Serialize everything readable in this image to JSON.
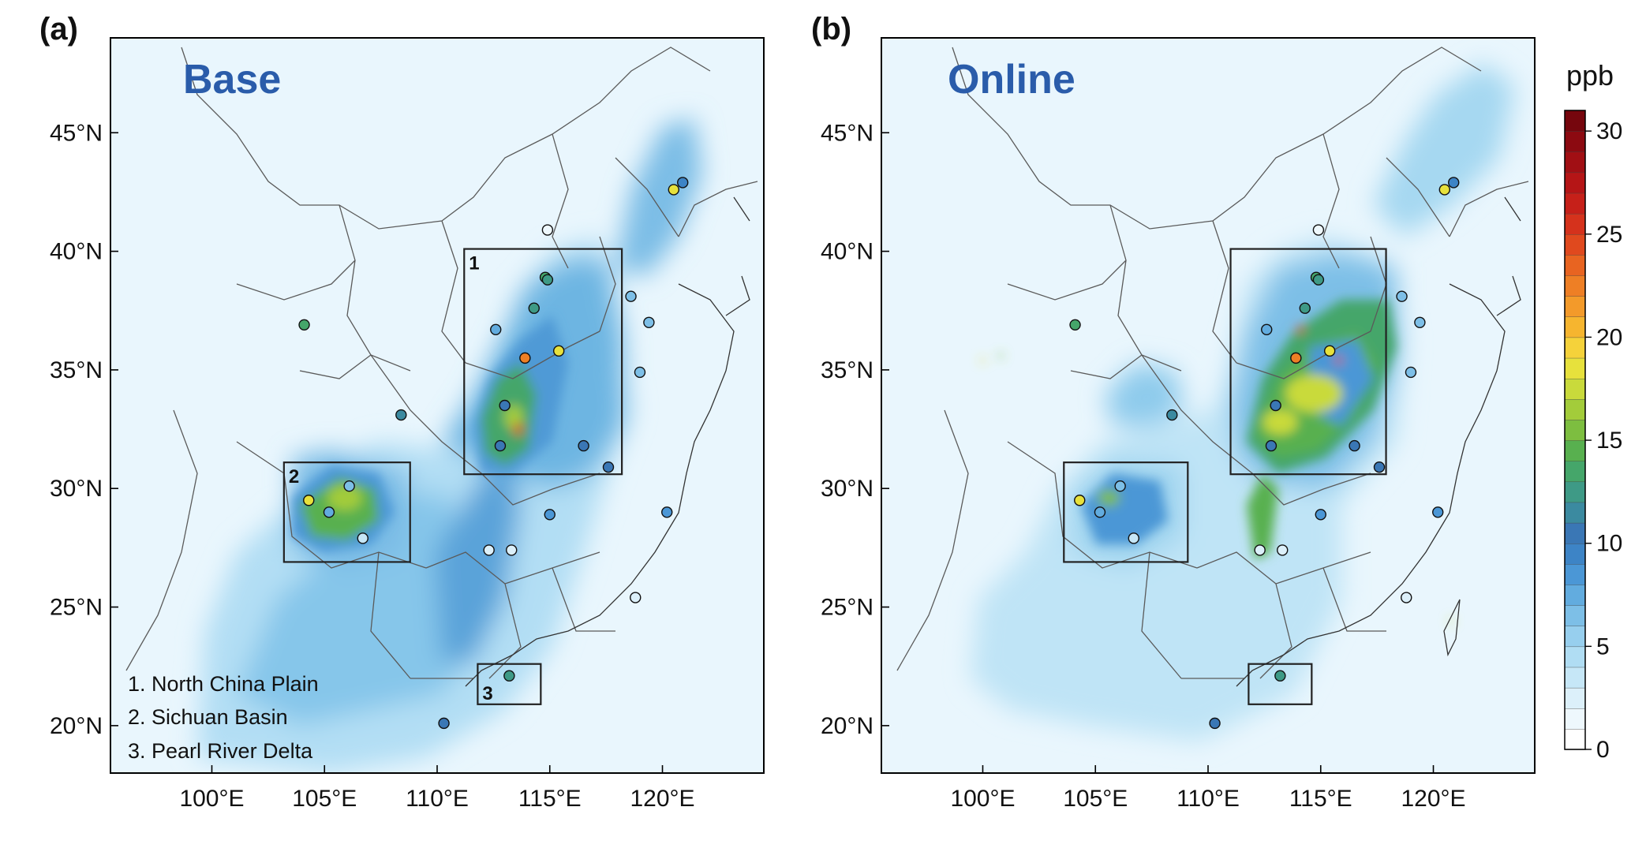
{
  "panels": [
    {
      "tag": "(a)",
      "title": "Base",
      "boxes": [
        {
          "number": "1",
          "lon": [
            111.2,
            118.2
          ],
          "lat": [
            30.6,
            40.1
          ]
        },
        {
          "number": "2",
          "lon": [
            103.2,
            108.8
          ],
          "lat": [
            26.9,
            31.1
          ]
        },
        {
          "number": "3",
          "lon": [
            111.8,
            114.6
          ],
          "lat": [
            20.9,
            22.6
          ]
        }
      ],
      "legend": [
        "1. North China Plain",
        "2. Sichuan Basin",
        "3. Pearl River Delta"
      ],
      "stations": [
        {
          "lon": 120.9,
          "lat": 42.9,
          "value": 9
        },
        {
          "lon": 120.5,
          "lat": 42.6,
          "value": 18
        },
        {
          "lon": 114.9,
          "lat": 40.9,
          "value": 1
        },
        {
          "lon": 114.8,
          "lat": 38.9,
          "value": 13
        },
        {
          "lon": 114.9,
          "lat": 38.8,
          "value": 12
        },
        {
          "lon": 114.3,
          "lat": 37.6,
          "value": 12
        },
        {
          "lon": 112.6,
          "lat": 36.7,
          "value": 7
        },
        {
          "lon": 113.9,
          "lat": 35.5,
          "value": 22
        },
        {
          "lon": 115.4,
          "lat": 35.8,
          "value": 18
        },
        {
          "lon": 113.0,
          "lat": 33.5,
          "value": 10
        },
        {
          "lon": 112.8,
          "lat": 31.8,
          "value": 10
        },
        {
          "lon": 116.5,
          "lat": 31.8,
          "value": 10
        },
        {
          "lon": 117.6,
          "lat": 30.9,
          "value": 10
        },
        {
          "lon": 118.6,
          "lat": 38.1,
          "value": 6
        },
        {
          "lon": 119.4,
          "lat": 37.0,
          "value": 6
        },
        {
          "lon": 119.0,
          "lat": 34.9,
          "value": 6
        },
        {
          "lon": 104.1,
          "lat": 36.9,
          "value": 13
        },
        {
          "lon": 108.4,
          "lat": 33.1,
          "value": 11
        },
        {
          "lon": 106.1,
          "lat": 30.1,
          "value": 6
        },
        {
          "lon": 104.3,
          "lat": 29.5,
          "value": 18
        },
        {
          "lon": 105.2,
          "lat": 29.0,
          "value": 7
        },
        {
          "lon": 106.7,
          "lat": 27.9,
          "value": 3
        },
        {
          "lon": 112.3,
          "lat": 27.4,
          "value": 2
        },
        {
          "lon": 113.3,
          "lat": 27.4,
          "value": 2
        },
        {
          "lon": 115.0,
          "lat": 28.9,
          "value": 8
        },
        {
          "lon": 120.2,
          "lat": 29.0,
          "value": 8
        },
        {
          "lon": 118.8,
          "lat": 25.4,
          "value": 2
        },
        {
          "lon": 113.2,
          "lat": 22.1,
          "value": 12
        },
        {
          "lon": 110.3,
          "lat": 20.1,
          "value": 10
        }
      ],
      "hotspots": [
        {
          "lon": 113.4,
          "lat": 33.0,
          "rx": 12,
          "ry": 16,
          "value": 16
        },
        {
          "lon": 113.6,
          "lat": 32.5,
          "rx": 6,
          "ry": 8,
          "value": 24
        },
        {
          "lon": 105.9,
          "lat": 29.6,
          "rx": 22,
          "ry": 16,
          "value": 16
        }
      ]
    },
    {
      "tag": "(b)",
      "title": "Online",
      "boxes": [
        {
          "lon": [
            111.0,
            117.9
          ],
          "lat": [
            30.6,
            40.1
          ]
        },
        {
          "lon": [
            103.6,
            109.1
          ],
          "lat": [
            26.9,
            31.1
          ]
        },
        {
          "lon": [
            111.8,
            114.6
          ],
          "lat": [
            20.9,
            22.6
          ]
        }
      ],
      "stations": [
        {
          "lon": 120.9,
          "lat": 42.9,
          "value": 9
        },
        {
          "lon": 120.5,
          "lat": 42.6,
          "value": 18
        },
        {
          "lon": 114.9,
          "lat": 40.9,
          "value": 1
        },
        {
          "lon": 114.8,
          "lat": 38.9,
          "value": 13
        },
        {
          "lon": 114.9,
          "lat": 38.8,
          "value": 12
        },
        {
          "lon": 114.3,
          "lat": 37.6,
          "value": 12
        },
        {
          "lon": 112.6,
          "lat": 36.7,
          "value": 7
        },
        {
          "lon": 113.9,
          "lat": 35.5,
          "value": 22
        },
        {
          "lon": 115.4,
          "lat": 35.8,
          "value": 18
        },
        {
          "lon": 113.0,
          "lat": 33.5,
          "value": 10
        },
        {
          "lon": 112.8,
          "lat": 31.8,
          "value": 10
        },
        {
          "lon": 116.5,
          "lat": 31.8,
          "value": 10
        },
        {
          "lon": 117.6,
          "lat": 30.9,
          "value": 10
        },
        {
          "lon": 118.6,
          "lat": 38.1,
          "value": 6
        },
        {
          "lon": 119.4,
          "lat": 37.0,
          "value": 6
        },
        {
          "lon": 119.0,
          "lat": 34.9,
          "value": 6
        },
        {
          "lon": 104.1,
          "lat": 36.9,
          "value": 13
        },
        {
          "lon": 108.4,
          "lat": 33.1,
          "value": 11
        },
        {
          "lon": 106.1,
          "lat": 30.1,
          "value": 6
        },
        {
          "lon": 104.3,
          "lat": 29.5,
          "value": 18
        },
        {
          "lon": 105.2,
          "lat": 29.0,
          "value": 7
        },
        {
          "lon": 106.7,
          "lat": 27.9,
          "value": 3
        },
        {
          "lon": 112.3,
          "lat": 27.4,
          "value": 2
        },
        {
          "lon": 113.3,
          "lat": 27.4,
          "value": 2
        },
        {
          "lon": 115.0,
          "lat": 28.9,
          "value": 8
        },
        {
          "lon": 120.2,
          "lat": 29.0,
          "value": 8
        },
        {
          "lon": 118.8,
          "lat": 25.4,
          "value": 2
        },
        {
          "lon": 113.2,
          "lat": 22.1,
          "value": 12
        },
        {
          "lon": 110.3,
          "lat": 20.1,
          "value": 10
        }
      ],
      "hotspots": [
        {
          "lon": 114.7,
          "lat": 34.0,
          "rx": 36,
          "ry": 24,
          "value": 17
        },
        {
          "lon": 113.2,
          "lat": 32.8,
          "rx": 22,
          "ry": 16,
          "value": 17
        },
        {
          "lon": 114.1,
          "lat": 36.7,
          "rx": 5,
          "ry": 5,
          "value": 25
        },
        {
          "lon": 115.8,
          "lat": 35.4,
          "rx": 5,
          "ry": 5,
          "value": 25
        },
        {
          "lon": 105.6,
          "lat": 29.6,
          "rx": 14,
          "ry": 10,
          "value": 15
        },
        {
          "lon": 100.0,
          "lat": 35.4,
          "rx": 3,
          "ry": 3,
          "value": 18
        },
        {
          "lon": 100.8,
          "lat": 35.6,
          "rx": 3,
          "ry": 3,
          "value": 15
        },
        {
          "lon": 120.8,
          "lat": 24.4,
          "rx": 3,
          "ry": 3,
          "value": 17
        }
      ]
    }
  ],
  "axes": {
    "lon_ticks": [
      100,
      105,
      110,
      115,
      120
    ],
    "lat_ticks": [
      20,
      25,
      30,
      35,
      40,
      45
    ],
    "lon_labels": [
      "100°E",
      "105°E",
      "110°E",
      "115°E",
      "120°E"
    ],
    "lat_labels": [
      "20°N",
      "25°N",
      "30°N",
      "35°N",
      "40°N",
      "45°N"
    ],
    "lon_range": [
      95.5,
      124.5
    ],
    "lat_range": [
      18,
      49
    ]
  },
  "colorbar": {
    "unit": "ppb",
    "range": [
      0,
      31
    ],
    "tick_values": [
      0,
      5,
      10,
      15,
      20,
      25,
      30
    ],
    "tick_labels": [
      "0",
      "5",
      "10",
      "15",
      "20",
      "25",
      "30"
    ],
    "colors": [
      "#ffffff",
      "#eef8fd",
      "#dcf0fa",
      "#c6e7f7",
      "#b0ddf3",
      "#97cfee",
      "#7dbfe7",
      "#62acdf",
      "#4b97d6",
      "#3d84c6",
      "#3a77b5",
      "#3b8aa0",
      "#3e9a86",
      "#45a66a",
      "#58b04f",
      "#7dbe40",
      "#a3cc3a",
      "#c9da3b",
      "#e7e13c",
      "#f5d23a",
      "#f6b52f",
      "#f39a2a",
      "#ee7f25",
      "#e86421",
      "#e0491e",
      "#d5321c",
      "#c62019",
      "#b51516",
      "#a10f14",
      "#8c0a11",
      "#76060d"
    ]
  }
}
